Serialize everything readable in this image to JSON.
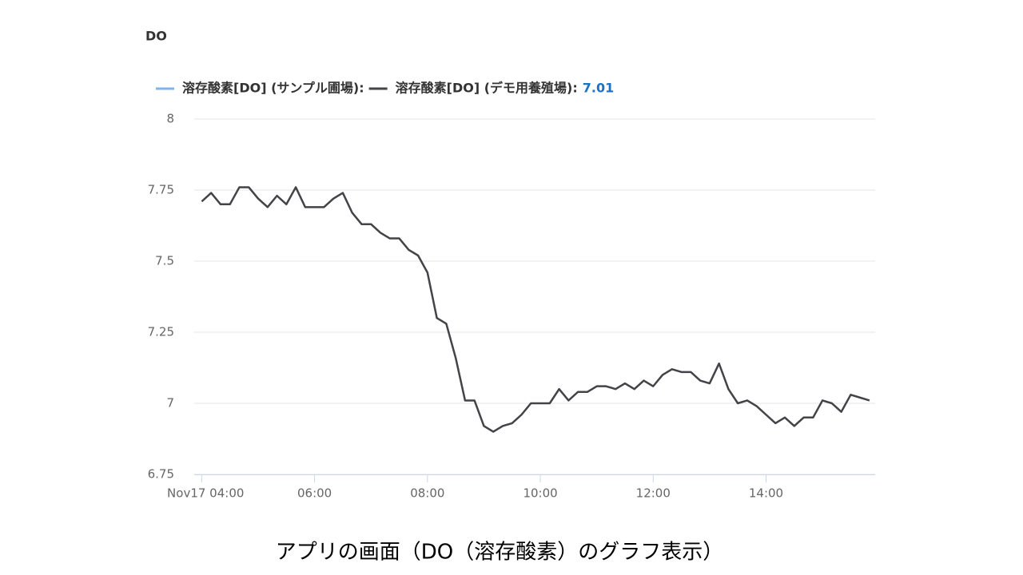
{
  "chart_data": {
    "type": "line",
    "title": "DO",
    "caption": "アプリの画面（DO（溶存酸素）のグラフ表示）",
    "x": [
      "04:00",
      "04:10",
      "04:20",
      "04:30",
      "04:40",
      "04:50",
      "05:00",
      "05:10",
      "05:20",
      "05:30",
      "05:40",
      "05:50",
      "06:00",
      "06:10",
      "06:20",
      "06:30",
      "06:40",
      "06:50",
      "07:00",
      "07:10",
      "07:20",
      "07:30",
      "07:40",
      "07:50",
      "08:00",
      "08:10",
      "08:20",
      "08:30",
      "08:40",
      "08:50",
      "09:00",
      "09:10",
      "09:20",
      "09:30",
      "09:40",
      "09:50",
      "10:00",
      "10:10",
      "10:20",
      "10:30",
      "10:40",
      "10:50",
      "11:00",
      "11:10",
      "11:20",
      "11:30",
      "11:40",
      "11:50",
      "12:00",
      "12:10",
      "12:20",
      "12:30",
      "12:40",
      "12:50",
      "13:00",
      "13:10",
      "13:20",
      "13:30",
      "13:40",
      "13:50",
      "14:00",
      "14:10",
      "14:20",
      "14:30",
      "14:40",
      "14:50",
      "15:00",
      "15:10",
      "15:20",
      "15:30",
      "15:40",
      "15:50"
    ],
    "series": [
      {
        "name": "溶存酸素[DO] (サンプル圃場):",
        "color": "#7cb5ec",
        "values": [
          null,
          null,
          null,
          null,
          null,
          null,
          null,
          null,
          null,
          null,
          null,
          null,
          null,
          null,
          null,
          null,
          null,
          null,
          null,
          null,
          null,
          null,
          null,
          null,
          null,
          null,
          null,
          null,
          null,
          null,
          null,
          null,
          null,
          null,
          null,
          null,
          null,
          null,
          null,
          null,
          null,
          null,
          null,
          null,
          null,
          null,
          null,
          null,
          null,
          null,
          null,
          null,
          null,
          null,
          null,
          null,
          null,
          null,
          null,
          null,
          null,
          null,
          null,
          null,
          null,
          null,
          null,
          null,
          null,
          null,
          null,
          null
        ]
      },
      {
        "name": "溶存酸素[DO] (デモ用養殖場):",
        "color": "#434348",
        "current": 7.01,
        "current_color": "#1a73c8",
        "values": [
          7.71,
          7.74,
          7.7,
          7.7,
          7.76,
          7.76,
          7.72,
          7.69,
          7.73,
          7.7,
          7.76,
          7.69,
          7.69,
          7.69,
          7.72,
          7.74,
          7.67,
          7.63,
          7.63,
          7.6,
          7.58,
          7.58,
          7.54,
          7.52,
          7.46,
          7.3,
          7.28,
          7.16,
          7.01,
          7.01,
          6.92,
          6.9,
          6.92,
          6.93,
          6.96,
          7.0,
          7.0,
          7.0,
          7.05,
          7.01,
          7.04,
          7.04,
          7.06,
          7.06,
          7.05,
          7.07,
          7.05,
          7.08,
          7.06,
          7.1,
          7.12,
          7.11,
          7.11,
          7.08,
          7.07,
          7.14,
          7.05,
          7.0,
          7.01,
          6.99,
          6.96,
          6.93,
          6.95,
          6.92,
          6.95,
          6.95,
          7.01,
          7.0,
          6.97,
          7.03,
          7.02,
          7.01
        ]
      }
    ],
    "xlim": [
      "03:52",
      "15:56"
    ],
    "xticks": [
      {
        "value": "04:00",
        "label": "Nov17 04:00"
      },
      "06:00",
      "08:00",
      "10:00",
      "12:00",
      "14:00"
    ],
    "ylim": [
      6.75,
      8
    ],
    "yticks": [
      6.75,
      7,
      7.25,
      7.5,
      7.75,
      8
    ],
    "grid": true
  }
}
